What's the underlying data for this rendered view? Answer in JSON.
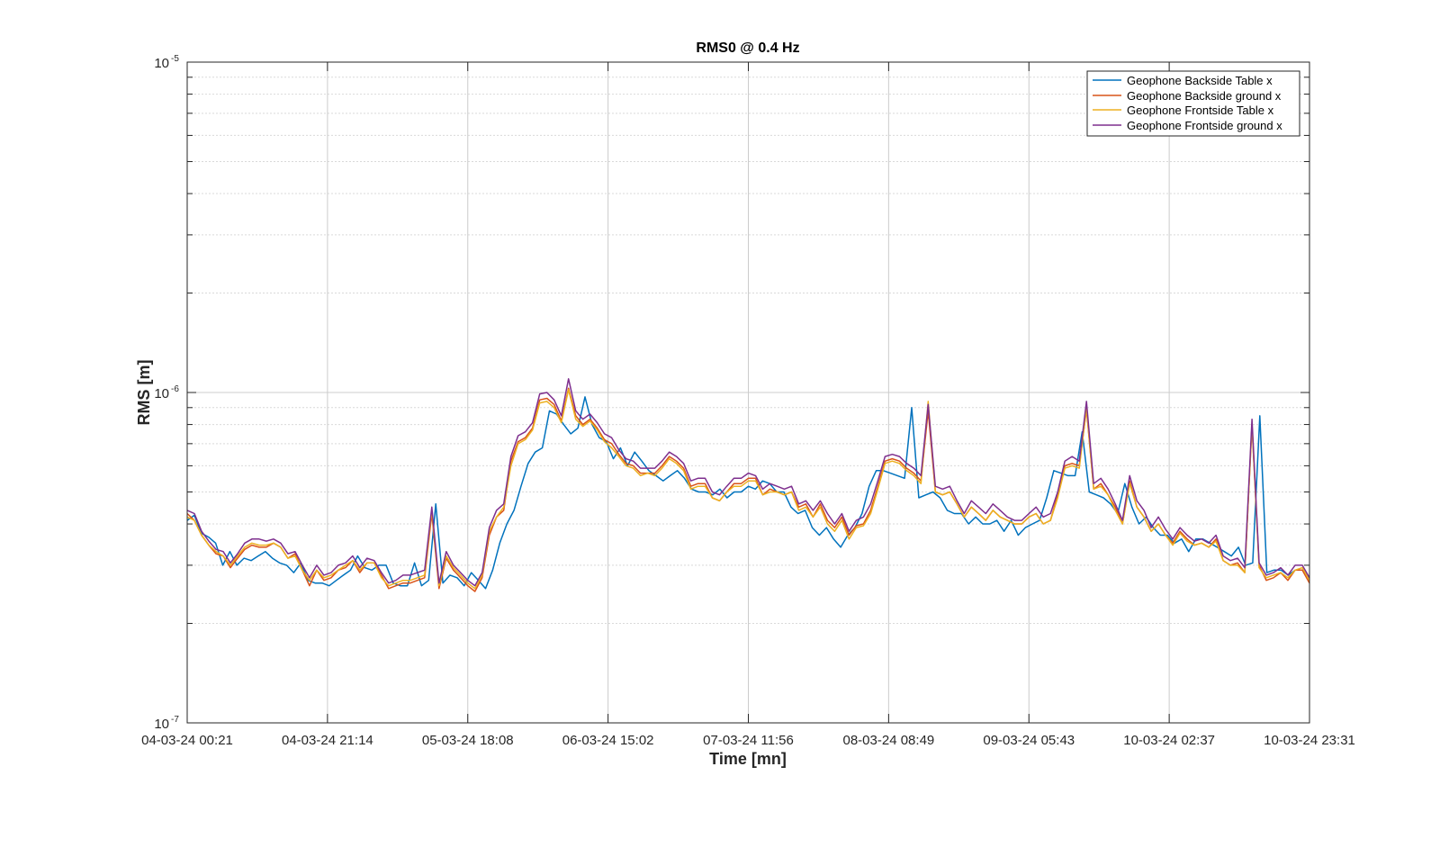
{
  "chart_data": {
    "type": "line",
    "title": "RMS0 @ 0.4 Hz",
    "xlabel": "Time [mn]",
    "ylabel": "RMS [m]",
    "yscale": "log",
    "ylim": [
      1e-07,
      1e-05
    ],
    "xlim": [
      "04-03-24 00:21",
      "10-03-24 23:31"
    ],
    "x_tick_labels": [
      "04-03-24 00:21",
      "04-03-24 21:14",
      "05-03-24 18:08",
      "06-03-24 15:02",
      "07-03-24 11:56",
      "08-03-24 08:49",
      "09-03-24 05:43",
      "10-03-24 02:37",
      "10-03-24 23:31"
    ],
    "y_ticks": [
      {
        "base": "10",
        "exp": "-5"
      },
      {
        "base": "10",
        "exp": "-6"
      },
      {
        "base": "10",
        "exp": "-7"
      }
    ],
    "grid": true,
    "legend_position": "top-right",
    "series": [
      {
        "name": "Geophone Backside Table x",
        "color": "#0072BD",
        "values": [
          4.1,
          4.25,
          3.75,
          3.65,
          3.5,
          3.0,
          3.3,
          3.0,
          3.15,
          3.1,
          3.2,
          3.3,
          3.15,
          3.05,
          3.0,
          2.85,
          3.05,
          2.7,
          2.65,
          2.65,
          2.6,
          2.7,
          2.8,
          2.9,
          3.2,
          2.95,
          2.9,
          3.0,
          3.0,
          2.65,
          2.6,
          2.6,
          3.05,
          2.6,
          2.7,
          4.6,
          2.65,
          2.8,
          2.75,
          2.6,
          2.85,
          2.7,
          2.55,
          2.9,
          3.5,
          4.0,
          4.4,
          5.2,
          6.1,
          6.6,
          6.8,
          8.8,
          8.6,
          8.0,
          7.5,
          7.8,
          9.7,
          8.0,
          7.3,
          7.1,
          6.3,
          6.8,
          6.0,
          6.6,
          6.2,
          5.8,
          5.6,
          5.4,
          5.6,
          5.8,
          5.5,
          5.1,
          5.0,
          5.0,
          4.9,
          5.1,
          4.8,
          5.0,
          5.0,
          5.2,
          5.1,
          5.4,
          5.3,
          5.0,
          5.0,
          4.5,
          4.3,
          4.4,
          3.9,
          3.7,
          3.9,
          3.6,
          3.4,
          3.7,
          3.9,
          4.3,
          5.2,
          5.8,
          5.8,
          5.7,
          5.6,
          5.5,
          9.0,
          4.8,
          4.9,
          5.0,
          4.8,
          4.4,
          4.3,
          4.3,
          4.0,
          4.2,
          4.0,
          4.0,
          4.1,
          3.8,
          4.1,
          3.7,
          3.9,
          4.0,
          4.1,
          4.8,
          5.8,
          5.7,
          5.6,
          5.6,
          7.6,
          5.0,
          4.9,
          4.8,
          4.6,
          4.3,
          5.3,
          4.5,
          4.0,
          4.2,
          3.9,
          3.7,
          3.7,
          3.5,
          3.6,
          3.3,
          3.6,
          3.6,
          3.5,
          3.4,
          3.3,
          3.2,
          3.4,
          3.0,
          3.05,
          8.5,
          2.85,
          2.9,
          2.9,
          2.8,
          2.9,
          2.9,
          2.75
        ]
      },
      {
        "name": "Geophone Backside ground x",
        "color": "#D95319",
        "values": [
          4.3,
          4.1,
          3.7,
          3.45,
          3.25,
          3.2,
          2.95,
          3.15,
          3.35,
          3.45,
          3.4,
          3.4,
          3.5,
          3.4,
          3.15,
          3.25,
          2.9,
          2.6,
          2.9,
          2.7,
          2.75,
          2.9,
          2.95,
          3.1,
          2.85,
          3.05,
          3.05,
          2.8,
          2.55,
          2.6,
          2.65,
          2.65,
          2.7,
          2.75,
          4.3,
          2.55,
          3.15,
          2.9,
          2.75,
          2.6,
          2.5,
          2.75,
          3.7,
          4.2,
          4.4,
          6.2,
          7.1,
          7.3,
          7.8,
          9.5,
          9.6,
          9.2,
          8.2,
          10.3,
          8.5,
          8.0,
          8.3,
          7.8,
          7.2,
          7.0,
          6.5,
          6.1,
          6.0,
          5.7,
          5.7,
          5.7,
          6.0,
          6.4,
          6.2,
          5.9,
          5.2,
          5.3,
          5.3,
          4.8,
          4.7,
          5.0,
          5.3,
          5.3,
          5.5,
          5.5,
          4.9,
          5.1,
          5.0,
          4.9,
          5.0,
          4.5,
          4.6,
          4.2,
          4.6,
          4.1,
          3.9,
          4.2,
          3.7,
          3.95,
          4.0,
          4.4,
          5.2,
          6.2,
          6.3,
          6.2,
          5.9,
          5.7,
          5.4,
          8.8,
          5.0,
          4.9,
          5.0,
          4.6,
          4.2,
          4.5,
          4.3,
          4.1,
          4.4,
          4.2,
          4.1,
          4.0,
          4.0,
          4.2,
          4.3,
          4.0,
          4.1,
          4.9,
          6.0,
          6.1,
          6.0,
          8.9,
          5.1,
          5.3,
          4.9,
          4.5,
          4.0,
          5.4,
          4.5,
          4.2,
          3.8,
          4.0,
          3.7,
          3.5,
          3.8,
          3.6,
          3.45,
          3.5,
          3.4,
          3.6,
          3.1,
          3.0,
          3.05,
          2.85,
          8.0,
          3.0,
          2.7,
          2.75,
          2.85,
          2.7,
          2.9,
          2.9,
          2.65
        ]
      },
      {
        "name": "Geophone Frontside Table x",
        "color": "#EDB120",
        "values": [
          4.2,
          4.1,
          3.7,
          3.45,
          3.3,
          3.2,
          3.0,
          3.2,
          3.4,
          3.5,
          3.45,
          3.45,
          3.5,
          3.4,
          3.15,
          3.2,
          2.9,
          2.7,
          2.9,
          2.75,
          2.8,
          2.9,
          3.0,
          3.1,
          2.9,
          3.05,
          3.05,
          2.75,
          2.6,
          2.65,
          2.7,
          2.7,
          2.75,
          2.8,
          4.4,
          2.6,
          3.2,
          2.95,
          2.8,
          2.65,
          2.55,
          2.8,
          3.8,
          4.2,
          4.5,
          6.0,
          7.0,
          7.2,
          7.7,
          9.3,
          9.4,
          9.0,
          8.1,
          10.2,
          8.3,
          7.9,
          8.2,
          7.7,
          7.1,
          6.8,
          6.4,
          6.0,
          5.9,
          5.6,
          5.7,
          5.6,
          5.9,
          6.3,
          6.1,
          5.8,
          5.1,
          5.2,
          5.2,
          4.8,
          4.7,
          5.0,
          5.2,
          5.2,
          5.4,
          5.4,
          4.9,
          5.0,
          5.0,
          4.9,
          5.0,
          4.4,
          4.5,
          4.2,
          4.5,
          4.0,
          3.8,
          4.1,
          3.6,
          3.9,
          3.95,
          4.3,
          5.1,
          6.1,
          6.2,
          6.1,
          5.8,
          5.6,
          5.3,
          9.4,
          5.0,
          4.9,
          5.0,
          4.6,
          4.2,
          4.5,
          4.3,
          4.1,
          4.4,
          4.2,
          4.1,
          4.0,
          4.0,
          4.2,
          4.3,
          4.0,
          4.1,
          4.8,
          5.9,
          6.0,
          5.9,
          9.0,
          5.1,
          5.2,
          4.9,
          4.4,
          4.0,
          5.3,
          4.5,
          4.2,
          3.8,
          4.0,
          3.7,
          3.45,
          3.75,
          3.55,
          3.45,
          3.5,
          3.4,
          3.55,
          3.1,
          3.0,
          3.0,
          2.85,
          8.0,
          2.95,
          2.75,
          2.8,
          2.85,
          2.75,
          2.9,
          2.95,
          2.7
        ]
      },
      {
        "name": "Geophone Frontside ground x",
        "color": "#7E2F8E",
        "values": [
          4.4,
          4.3,
          3.8,
          3.55,
          3.35,
          3.3,
          3.05,
          3.25,
          3.5,
          3.6,
          3.6,
          3.55,
          3.6,
          3.5,
          3.25,
          3.3,
          3.0,
          2.75,
          3.0,
          2.8,
          2.85,
          3.0,
          3.05,
          3.2,
          2.95,
          3.15,
          3.1,
          2.85,
          2.65,
          2.7,
          2.8,
          2.8,
          2.85,
          2.9,
          4.5,
          2.65,
          3.3,
          3.0,
          2.85,
          2.7,
          2.6,
          2.85,
          3.9,
          4.4,
          4.6,
          6.4,
          7.4,
          7.6,
          8.1,
          9.9,
          10.0,
          9.5,
          8.5,
          11.0,
          8.8,
          8.3,
          8.6,
          8.1,
          7.5,
          7.3,
          6.7,
          6.3,
          6.2,
          5.9,
          5.9,
          5.9,
          6.2,
          6.6,
          6.4,
          6.1,
          5.4,
          5.5,
          5.5,
          5.0,
          4.9,
          5.2,
          5.5,
          5.5,
          5.7,
          5.6,
          5.1,
          5.3,
          5.2,
          5.1,
          5.2,
          4.6,
          4.7,
          4.4,
          4.7,
          4.3,
          4.0,
          4.3,
          3.8,
          4.1,
          4.2,
          4.6,
          5.4,
          6.4,
          6.5,
          6.4,
          6.1,
          5.9,
          5.6,
          9.2,
          5.2,
          5.1,
          5.2,
          4.7,
          4.3,
          4.7,
          4.5,
          4.3,
          4.6,
          4.4,
          4.2,
          4.1,
          4.1,
          4.3,
          4.5,
          4.2,
          4.3,
          5.0,
          6.2,
          6.4,
          6.2,
          9.4,
          5.3,
          5.5,
          5.1,
          4.6,
          4.1,
          5.6,
          4.7,
          4.4,
          3.9,
          4.2,
          3.85,
          3.6,
          3.9,
          3.7,
          3.55,
          3.6,
          3.5,
          3.7,
          3.2,
          3.1,
          3.15,
          2.95,
          8.3,
          3.05,
          2.8,
          2.85,
          2.95,
          2.8,
          3.0,
          3.0,
          2.75
        ]
      }
    ]
  }
}
